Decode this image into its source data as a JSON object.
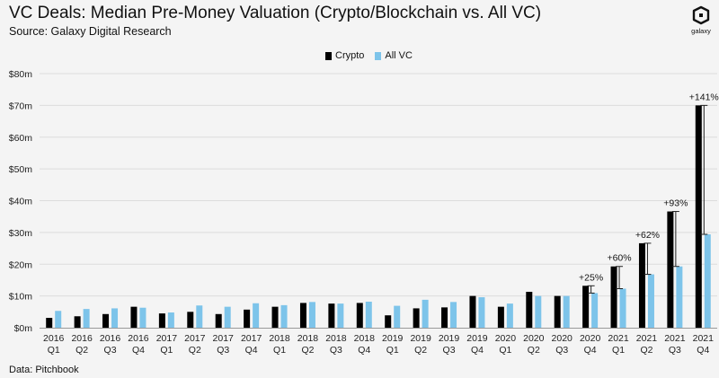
{
  "header": {
    "title": "VC Deals: Median Pre-Money Valuation (Crypto/Blockchain vs. All VC)",
    "subtitle": "Source: Galaxy Digital Research"
  },
  "logo": {
    "icon": "galaxy-logo-icon",
    "text": "galaxy"
  },
  "footnote": "Data: Pitchbook",
  "colors": {
    "crypto": "#000000",
    "allvc": "#7dc4ea",
    "grid": "#dcdcdc",
    "axis": "#9a9a9a"
  },
  "chart_data": {
    "type": "bar",
    "title": "VC Deals: Median Pre-Money Valuation (Crypto/Blockchain vs. All VC)",
    "subtitle": "Source: Galaxy Digital Research",
    "xlabel": "",
    "ylabel": "",
    "ylim": [
      0,
      80
    ],
    "yticks": [
      0,
      10,
      20,
      30,
      40,
      50,
      60,
      70,
      80
    ],
    "ytick_labels": [
      "$0m",
      "$10m",
      "$20m",
      "$30m",
      "$40m",
      "$50m",
      "$60m",
      "$70m",
      "$80m"
    ],
    "grid": true,
    "legend_position": "top-center",
    "categories": [
      [
        "2016",
        "Q1"
      ],
      [
        "2016",
        "Q2"
      ],
      [
        "2016",
        "Q3"
      ],
      [
        "2016",
        "Q4"
      ],
      [
        "2017",
        "Q1"
      ],
      [
        "2017",
        "Q2"
      ],
      [
        "2017",
        "Q3"
      ],
      [
        "2017",
        "Q4"
      ],
      [
        "2018",
        "Q1"
      ],
      [
        "2018",
        "Q2"
      ],
      [
        "2018",
        "Q3"
      ],
      [
        "2018",
        "Q4"
      ],
      [
        "2019",
        "Q1"
      ],
      [
        "2019",
        "Q2"
      ],
      [
        "2019",
        "Q3"
      ],
      [
        "2019",
        "Q4"
      ],
      [
        "2020",
        "Q1"
      ],
      [
        "2020",
        "Q2"
      ],
      [
        "2020",
        "Q3"
      ],
      [
        "2020",
        "Q4"
      ],
      [
        "2021",
        "Q1"
      ],
      [
        "2021",
        "Q2"
      ],
      [
        "2021",
        "Q3"
      ],
      [
        "2021",
        "Q4"
      ]
    ],
    "series": [
      {
        "name": "Crypto",
        "values": [
          3.1,
          3.6,
          4.3,
          6.6,
          4.5,
          5.0,
          4.3,
          5.7,
          6.6,
          7.8,
          7.6,
          7.8,
          3.9,
          6.1,
          6.4,
          10.0,
          6.6,
          11.3,
          10.0,
          13.2,
          19.3,
          26.6,
          36.6,
          70.0
        ]
      },
      {
        "name": "All VC",
        "values": [
          5.3,
          5.9,
          6.1,
          6.3,
          4.8,
          7.0,
          6.6,
          7.7,
          7.1,
          8.1,
          7.6,
          8.2,
          6.9,
          8.8,
          8.1,
          9.6,
          7.6,
          10.0,
          10.0,
          10.9,
          12.3,
          16.8,
          19.3,
          29.4
        ]
      }
    ],
    "annotations": [
      {
        "category_index": 19,
        "label": "+25%"
      },
      {
        "category_index": 20,
        "label": "+60%"
      },
      {
        "category_index": 21,
        "label": "+62%"
      },
      {
        "category_index": 22,
        "label": "+93%"
      },
      {
        "category_index": 23,
        "label": "+141%"
      }
    ]
  }
}
